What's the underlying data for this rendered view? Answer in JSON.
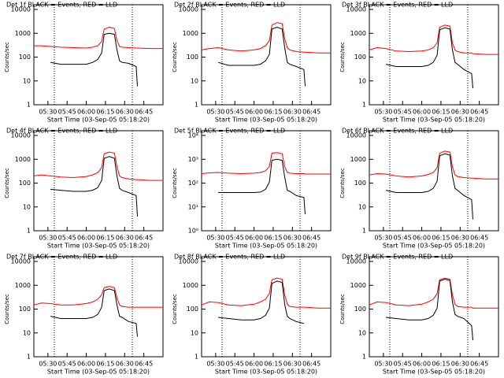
{
  "chart_data": [
    {
      "type": "line",
      "title": "Det 1f BLACK = Events, RED = LLD",
      "xlabel": "Start Time (03-Sep-05 05:18:20)",
      "ylabel": "Counts/sec",
      "log_y": true,
      "x": [
        "05:19",
        "05:25",
        "05:32",
        "05:40",
        "05:50",
        "06:00",
        "06:05",
        "06:09",
        "06:12",
        "06:14",
        "06:18",
        "06:22",
        "06:24",
        "06:26",
        "06:28",
        "06:33",
        "06:39",
        "06:40",
        "06:50",
        "07:00"
      ],
      "xlim": [
        "05:19",
        "07:00"
      ],
      "xticks": [
        "05:30",
        "05:45",
        "06:00",
        "06:15",
        "06:30",
        "06:45"
      ],
      "ylim": [
        1,
        10000
      ],
      "yticks": [
        1,
        10,
        100,
        1000,
        10000
      ],
      "vlines": [
        "05:35",
        "06:36"
      ],
      "series": [
        {
          "color": "#ff0000",
          "values": [
            300,
            300,
            280,
            260,
            250,
            240,
            260,
            300,
            450,
            1500,
            1800,
            1600,
            500,
            280,
            260,
            250,
            240,
            240,
            230,
            230
          ]
        },
        {
          "color": "#000000",
          "values": [
            null,
            null,
            60,
            50,
            50,
            50,
            60,
            80,
            150,
            900,
            1000,
            900,
            200,
            70,
            60,
            55,
            40,
            6,
            null,
            null
          ]
        }
      ]
    },
    {
      "type": "line",
      "title": "Det 2f BLACK = Events, RED = LLD",
      "xlabel": "Start Time (03-Sep-05 05:18:20)",
      "ylabel": "Counts/sec",
      "log_y": true,
      "x": [
        "05:19",
        "05:25",
        "05:32",
        "05:40",
        "05:50",
        "06:00",
        "06:05",
        "06:09",
        "06:12",
        "06:14",
        "06:18",
        "06:22",
        "06:24",
        "06:26",
        "06:28",
        "06:33",
        "06:39",
        "06:40",
        "06:50",
        "07:00"
      ],
      "xlim": [
        "05:19",
        "07:00"
      ],
      "xticks": [
        "05:30",
        "05:45",
        "06:00",
        "06:15",
        "06:30",
        "06:45"
      ],
      "ylim": [
        1,
        10000
      ],
      "yticks": [
        1,
        10,
        100,
        1000,
        10000
      ],
      "vlines": [
        "05:35",
        "06:36"
      ],
      "series": [
        {
          "color": "#ff0000",
          "values": [
            200,
            230,
            250,
            200,
            180,
            200,
            230,
            300,
            500,
            2200,
            2800,
            2500,
            600,
            250,
            200,
            170,
            160,
            160,
            150,
            150
          ]
        },
        {
          "color": "#000000",
          "values": [
            null,
            null,
            60,
            45,
            45,
            45,
            50,
            70,
            130,
            1500,
            1800,
            1500,
            250,
            60,
            50,
            40,
            30,
            6,
            null,
            null
          ]
        }
      ]
    },
    {
      "type": "line",
      "title": "Det 3f BLACK = Events, RED = LLD",
      "xlabel": "Start Time (03-Sep-05 05:18:20)",
      "ylabel": "Counts/sec",
      "log_y": true,
      "x": [
        "05:19",
        "05:25",
        "05:32",
        "05:40",
        "05:50",
        "06:00",
        "06:05",
        "06:09",
        "06:12",
        "06:14",
        "06:18",
        "06:22",
        "06:24",
        "06:26",
        "06:28",
        "06:33",
        "06:39",
        "06:40",
        "06:50",
        "07:00"
      ],
      "xlim": [
        "05:19",
        "07:00"
      ],
      "xticks": [
        "05:30",
        "05:45",
        "06:00",
        "06:15",
        "06:30",
        "06:45"
      ],
      "ylim": [
        1,
        10000
      ],
      "yticks": [
        1,
        10,
        100,
        1000,
        10000
      ],
      "vlines": [
        "05:35",
        "06:36"
      ],
      "series": [
        {
          "color": "#ff0000",
          "values": [
            200,
            250,
            230,
            180,
            170,
            180,
            200,
            250,
            400,
            1800,
            2200,
            2000,
            400,
            200,
            170,
            150,
            150,
            140,
            130,
            130
          ]
        },
        {
          "color": "#000000",
          "values": [
            null,
            null,
            50,
            40,
            40,
            40,
            45,
            60,
            120,
            1400,
            1700,
            1500,
            200,
            60,
            50,
            30,
            20,
            5,
            null,
            null
          ]
        }
      ]
    },
    {
      "type": "line",
      "title": "Det 4f BLACK = Events, RED = LLD",
      "xlabel": "Start Time (03-Sep-05 05:18:20)",
      "ylabel": "Counts/sec",
      "log_y": true,
      "x": [
        "05:19",
        "05:25",
        "05:32",
        "05:40",
        "05:50",
        "06:00",
        "06:05",
        "06:09",
        "06:12",
        "06:14",
        "06:18",
        "06:22",
        "06:24",
        "06:26",
        "06:28",
        "06:33",
        "06:39",
        "06:40",
        "06:50",
        "07:00"
      ],
      "xlim": [
        "05:19",
        "07:00"
      ],
      "xticks": [
        "05:30",
        "05:45",
        "06:00",
        "06:15",
        "06:30",
        "06:45"
      ],
      "ylim": [
        1,
        10000
      ],
      "yticks": [
        1,
        10,
        100,
        1000,
        10000
      ],
      "vlines": [
        "05:35",
        "06:36"
      ],
      "series": [
        {
          "color": "#ff0000",
          "values": [
            200,
            220,
            200,
            180,
            170,
            190,
            220,
            280,
            450,
            1700,
            2000,
            1800,
            500,
            200,
            170,
            150,
            140,
            140,
            130,
            130
          ]
        },
        {
          "color": "#000000",
          "values": [
            null,
            null,
            55,
            50,
            45,
            45,
            50,
            65,
            130,
            1100,
            1300,
            1100,
            200,
            60,
            50,
            40,
            30,
            4,
            null,
            null
          ]
        }
      ]
    },
    {
      "type": "line",
      "title": "Det 5f BLACK = Events, RED = LLD",
      "xlabel": "Start Time (03-Sep-05 05:18:20)",
      "ylabel": "Counts/sec",
      "log_y": true,
      "x": [
        "05:19",
        "05:25",
        "05:32",
        "05:40",
        "05:50",
        "06:00",
        "06:05",
        "06:09",
        "06:12",
        "06:14",
        "06:18",
        "06:22",
        "06:24",
        "06:26",
        "06:28",
        "06:33",
        "06:39",
        "06:40",
        "06:50",
        "07:00"
      ],
      "xlim": [
        "05:19",
        "07:00"
      ],
      "xticks": [
        "05:30",
        "05:45",
        "06:00",
        "06:15",
        "06:30",
        "06:45"
      ],
      "ylim": [
        1,
        10000
      ],
      "yticks": [
        {
          "value": 1,
          "label": "10⁰"
        },
        {
          "value": 10,
          "label": "10¹"
        },
        {
          "value": 100,
          "label": "10²"
        },
        {
          "value": 1000,
          "label": "10³"
        },
        {
          "value": 10000,
          "label": "10⁴"
        }
      ],
      "vlines": [
        "05:35",
        "06:36"
      ],
      "series": [
        {
          "color": "#ff0000",
          "values": [
            250,
            270,
            280,
            260,
            250,
            260,
            280,
            330,
            500,
            1800,
            1900,
            1700,
            500,
            280,
            260,
            250,
            250,
            240,
            240,
            240
          ]
        },
        {
          "color": "#000000",
          "values": [
            null,
            null,
            40,
            40,
            40,
            40,
            42,
            55,
            110,
            900,
            1000,
            900,
            180,
            50,
            45,
            30,
            25,
            5,
            null,
            null
          ]
        }
      ]
    },
    {
      "type": "line",
      "title": "Det 6f BLACK = Events, RED = LLD",
      "xlabel": "Start Time (03-Sep-05 05:18:20)",
      "ylabel": "Counts/sec",
      "log_y": true,
      "x": [
        "05:19",
        "05:25",
        "05:32",
        "05:40",
        "05:50",
        "06:00",
        "06:05",
        "06:09",
        "06:12",
        "06:14",
        "06:18",
        "06:22",
        "06:24",
        "06:26",
        "06:28",
        "06:33",
        "06:39",
        "06:40",
        "06:50",
        "07:00"
      ],
      "xlim": [
        "05:19",
        "07:00"
      ],
      "xticks": [
        "05:30",
        "05:45",
        "06:00",
        "06:15",
        "06:30",
        "06:45"
      ],
      "ylim": [
        1,
        10000
      ],
      "yticks": [
        1,
        10,
        100,
        1000,
        10000
      ],
      "vlines": [
        "05:35",
        "06:36"
      ],
      "series": [
        {
          "color": "#ff0000",
          "values": [
            220,
            250,
            240,
            200,
            180,
            200,
            230,
            280,
            450,
            1800,
            2200,
            2000,
            500,
            220,
            190,
            170,
            160,
            160,
            150,
            150
          ]
        },
        {
          "color": "#000000",
          "values": [
            null,
            null,
            50,
            40,
            40,
            40,
            45,
            60,
            120,
            1400,
            1700,
            1500,
            200,
            60,
            50,
            30,
            20,
            3,
            null,
            null
          ]
        }
      ]
    },
    {
      "type": "line",
      "title": "Det 7f BLACK = Events, RED = LLD",
      "xlabel": "Start Time (03-Sep-05 05:18:20)",
      "ylabel": "Counts/sec",
      "log_y": true,
      "x": [
        "05:19",
        "05:25",
        "05:32",
        "05:40",
        "05:50",
        "06:00",
        "06:05",
        "06:09",
        "06:12",
        "06:14",
        "06:18",
        "06:22",
        "06:24",
        "06:26",
        "06:28",
        "06:33",
        "06:39",
        "06:40",
        "06:50",
        "07:00"
      ],
      "xlim": [
        "05:19",
        "07:00"
      ],
      "xticks": [
        "05:30",
        "05:45",
        "06:00",
        "06:15",
        "06:30",
        "06:45"
      ],
      "ylim": [
        1,
        10000
      ],
      "yticks": [
        1,
        10,
        100,
        1000,
        10000
      ],
      "vlines": [
        "05:35",
        "06:36"
      ],
      "series": [
        {
          "color": "#ff0000",
          "values": [
            150,
            180,
            170,
            150,
            150,
            170,
            200,
            260,
            400,
            800,
            900,
            800,
            300,
            150,
            130,
            120,
            120,
            120,
            120,
            120
          ]
        },
        {
          "color": "#000000",
          "values": [
            null,
            null,
            50,
            40,
            40,
            40,
            45,
            60,
            120,
            600,
            700,
            600,
            150,
            50,
            45,
            30,
            25,
            7,
            null,
            null
          ]
        }
      ]
    },
    {
      "type": "line",
      "title": "Det 8f BLACK = Events, RED = LLD",
      "xlabel": "Start Time (03-Sep-05 05:18:20)",
      "ylabel": "Counts/sec",
      "log_y": true,
      "x": [
        "05:19",
        "05:25",
        "05:32",
        "05:40",
        "05:50",
        "06:00",
        "06:05",
        "06:09",
        "06:12",
        "06:14",
        "06:18",
        "06:22",
        "06:24",
        "06:26",
        "06:28",
        "06:33",
        "06:39",
        "06:40",
        "06:50",
        "07:00"
      ],
      "xlim": [
        "05:19",
        "07:00"
      ],
      "xticks": [
        "05:30",
        "05:45",
        "06:00",
        "06:15",
        "06:30",
        "06:45"
      ],
      "ylim": [
        1,
        10000
      ],
      "yticks": [
        1,
        10,
        100,
        1000,
        10000
      ],
      "vlines": [
        "05:35",
        "06:36"
      ],
      "series": [
        {
          "color": "#ff0000",
          "values": [
            150,
            200,
            190,
            150,
            140,
            160,
            200,
            260,
            450,
            1700,
            2000,
            1800,
            400,
            160,
            130,
            120,
            120,
            120,
            110,
            110
          ]
        },
        {
          "color": "#000000",
          "values": [
            null,
            null,
            45,
            40,
            35,
            35,
            40,
            55,
            110,
            1200,
            1500,
            1300,
            160,
            50,
            40,
            30,
            25,
            null,
            null,
            null
          ]
        }
      ]
    },
    {
      "type": "line",
      "title": "Det 9f BLACK = Events, RED = LLD",
      "xlabel": "Start Time (03-Sep-05 05:18:20)",
      "ylabel": "Counts/sec",
      "log_y": true,
      "x": [
        "05:19",
        "05:25",
        "05:32",
        "05:40",
        "05:50",
        "06:00",
        "06:05",
        "06:09",
        "06:12",
        "06:14",
        "06:18",
        "06:22",
        "06:24",
        "06:26",
        "06:28",
        "06:33",
        "06:39",
        "06:40",
        "06:50",
        "07:00"
      ],
      "xlim": [
        "05:19",
        "07:00"
      ],
      "xticks": [
        "05:30",
        "05:45",
        "06:00",
        "06:15",
        "06:30",
        "06:45"
      ],
      "ylim": [
        1,
        10000
      ],
      "yticks": [
        1,
        10,
        100,
        1000,
        10000
      ],
      "vlines": [
        "05:35",
        "06:36"
      ],
      "series": [
        {
          "color": "#ff0000",
          "values": [
            150,
            200,
            190,
            150,
            140,
            160,
            200,
            260,
            450,
            1700,
            2000,
            1800,
            400,
            160,
            130,
            120,
            120,
            110,
            110,
            110
          ]
        },
        {
          "color": "#000000",
          "values": [
            null,
            null,
            45,
            40,
            35,
            35,
            40,
            55,
            110,
            1500,
            1800,
            1600,
            200,
            60,
            50,
            40,
            20,
            5,
            null,
            null
          ]
        }
      ]
    }
  ]
}
